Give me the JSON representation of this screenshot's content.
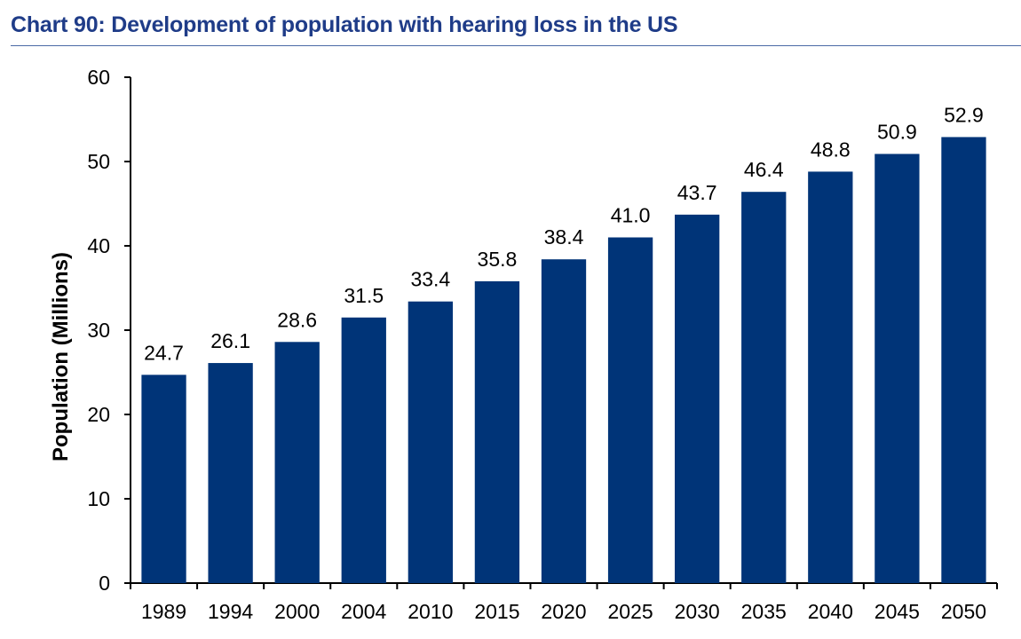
{
  "title": "Chart 90: Development of population with hearing loss in the US",
  "colors": {
    "bar": "#003478",
    "title": "#1f3c88"
  },
  "chart_data": {
    "type": "bar",
    "title": "Chart 90: Development of population with hearing loss in the US",
    "xlabel": "",
    "ylabel": "Population (Millions)",
    "categories": [
      "1989",
      "1994",
      "2000",
      "2004",
      "2010",
      "2015",
      "2020",
      "2025",
      "2030",
      "2035",
      "2040",
      "2045",
      "2050"
    ],
    "values": [
      24.7,
      26.1,
      28.6,
      31.5,
      33.4,
      35.8,
      38.4,
      41.0,
      43.7,
      46.4,
      48.8,
      50.9,
      52.9
    ],
    "data_labels": [
      "24.7",
      "26.1",
      "28.6",
      "31.5",
      "33.4",
      "35.8",
      "38.4",
      "41.0",
      "43.7",
      "46.4",
      "48.8",
      "50.9",
      "52.9"
    ],
    "ylim": [
      0,
      60
    ],
    "yticks": [
      0,
      10,
      20,
      30,
      40,
      50,
      60
    ],
    "grid": false,
    "legend": "none"
  }
}
